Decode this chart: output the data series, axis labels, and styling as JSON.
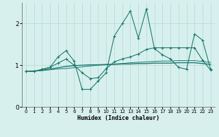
{
  "xlabel": "Humidex (Indice chaleur)",
  "x": [
    0,
    1,
    2,
    3,
    4,
    5,
    6,
    7,
    8,
    9,
    10,
    11,
    12,
    13,
    14,
    15,
    16,
    17,
    18,
    19,
    20,
    21,
    22,
    23
  ],
  "line1_y": [
    0.85,
    0.85,
    0.9,
    0.95,
    1.2,
    1.35,
    1.1,
    0.42,
    0.42,
    0.62,
    0.82,
    1.7,
    2.0,
    2.3,
    1.65,
    2.35,
    1.4,
    1.25,
    1.15,
    0.95,
    0.9,
    1.75,
    1.6,
    0.9
  ],
  "line2_y": [
    0.85,
    0.85,
    0.9,
    0.95,
    1.05,
    1.15,
    1.0,
    0.82,
    0.68,
    0.7,
    0.92,
    1.08,
    1.15,
    1.2,
    1.27,
    1.38,
    1.42,
    1.42,
    1.42,
    1.42,
    1.42,
    1.42,
    1.12,
    0.88
  ],
  "line3_y": [
    0.85,
    0.86,
    0.88,
    0.91,
    0.94,
    0.97,
    0.99,
    1.0,
    1.01,
    1.01,
    1.02,
    1.02,
    1.03,
    1.03,
    1.04,
    1.04,
    1.05,
    1.05,
    1.05,
    1.06,
    1.06,
    1.06,
    1.04,
    1.02
  ],
  "line4_y": [
    0.85,
    0.86,
    0.87,
    0.89,
    0.91,
    0.92,
    0.94,
    0.96,
    0.98,
    1.0,
    1.01,
    1.03,
    1.04,
    1.06,
    1.07,
    1.08,
    1.09,
    1.1,
    1.1,
    1.11,
    1.11,
    1.11,
    1.09,
    1.07
  ],
  "color": "#1a7a6e",
  "bg_color": "#d8f0ed",
  "grid_color": "#afd8d4",
  "ylim": [
    0,
    2.5
  ],
  "yticks": [
    0,
    1,
    2
  ],
  "xlim": [
    -0.5,
    23.5
  ]
}
